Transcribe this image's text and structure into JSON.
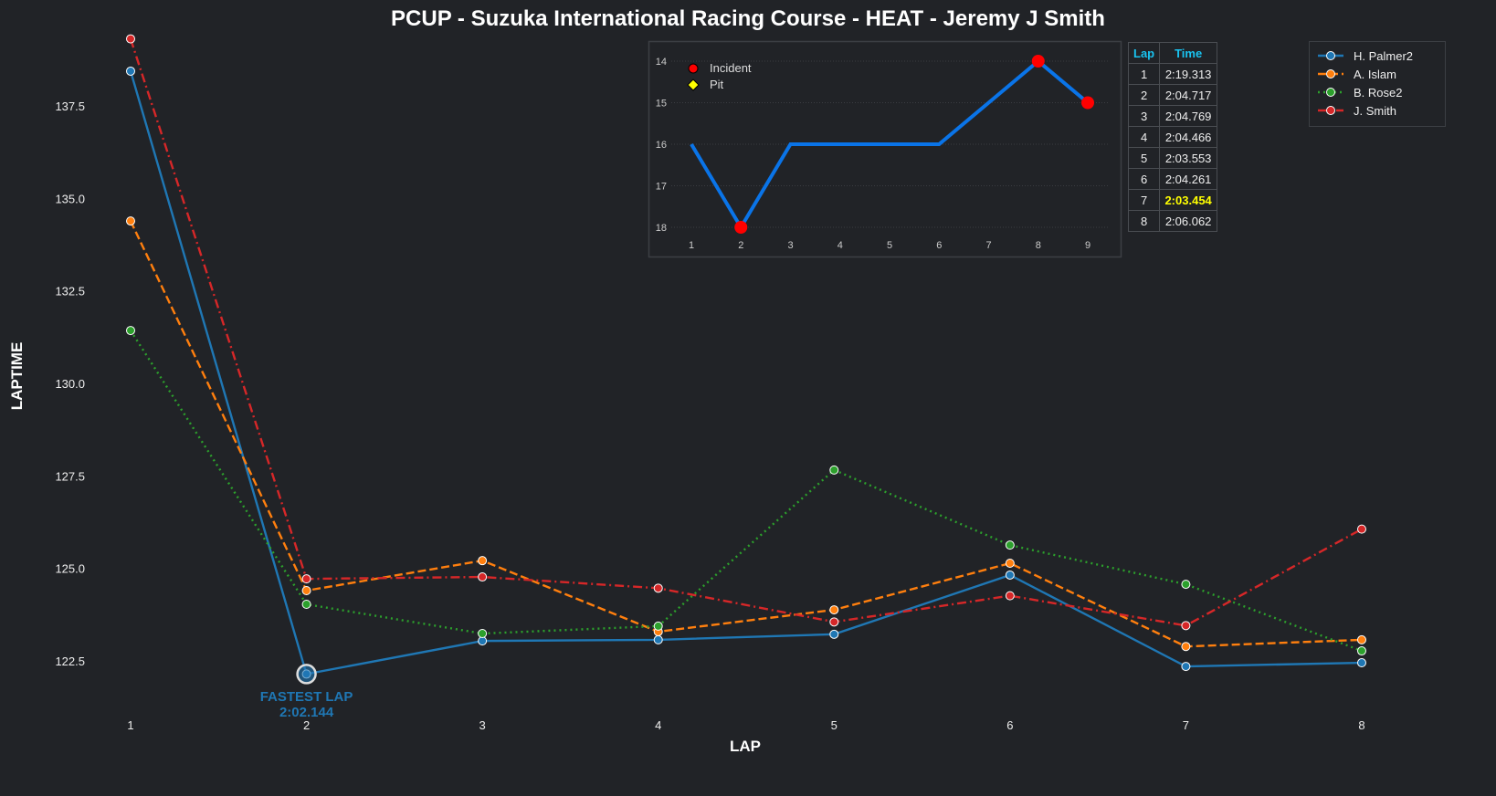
{
  "chart_data": [
    {
      "type": "line",
      "title": "PCUP - Suzuka International Racing Course - HEAT - Jeremy J Smith",
      "xlabel": "LAP",
      "ylabel": "LAPTIME",
      "x": [
        1,
        2,
        3,
        4,
        5,
        6,
        7,
        8
      ],
      "xlim": [
        0.8,
        8.2
      ],
      "ylim": [
        120.9,
        139.5
      ],
      "yticks": [
        122.5,
        125.0,
        127.5,
        130.0,
        132.5,
        135.0,
        137.5
      ],
      "ytick_labels": [
        "122.5",
        "125.0",
        "127.5",
        "130.0",
        "132.5",
        "135.0",
        "137.5"
      ],
      "grid": false,
      "legend_position": "top-right",
      "series": [
        {
          "name": "H. Palmer2",
          "color": "#1f77b4",
          "dash": "solid",
          "values": [
            138.44,
            122.144,
            123.04,
            123.07,
            123.22,
            124.82,
            122.35,
            122.45
          ]
        },
        {
          "name": "A. Islam",
          "color": "#ff7f0e",
          "dash": "dashed",
          "values": [
            134.39,
            124.4,
            125.21,
            123.29,
            123.88,
            125.14,
            122.89,
            123.07
          ]
        },
        {
          "name": "B. Rose2",
          "color": "#2ca02c",
          "dash": "dotted",
          "values": [
            131.43,
            124.03,
            123.24,
            123.44,
            127.66,
            125.63,
            124.57,
            122.77
          ]
        },
        {
          "name": "J. Smith",
          "color": "#d62728",
          "dash": "dashdot",
          "values": [
            139.313,
            124.717,
            124.769,
            124.466,
            123.553,
            124.261,
            123.454,
            126.062
          ]
        }
      ],
      "annotation": {
        "label": "FASTEST LAP",
        "value": "2:02.144",
        "lap": 2,
        "laptime": 122.144,
        "color": "#1f77b4"
      }
    },
    {
      "type": "line",
      "title": "",
      "x": [
        1,
        2,
        3,
        4,
        5,
        6,
        7,
        8,
        9
      ],
      "values": [
        16,
        18,
        16,
        16,
        16,
        16,
        15,
        14,
        15
      ],
      "ylim": [
        18.3,
        13.7
      ],
      "yticks": [
        14,
        15,
        16,
        17,
        18
      ],
      "line_color": "#0a74e8",
      "incidents": [
        2,
        8,
        9
      ],
      "pits": [],
      "legend": [
        {
          "label": "Incident",
          "color": "#ff0000"
        },
        {
          "label": "Pit",
          "color": "#ffff00"
        }
      ]
    }
  ],
  "table": {
    "headers": [
      "Lap",
      "Time"
    ],
    "rows": [
      [
        "1",
        "2:19.313"
      ],
      [
        "2",
        "2:04.717"
      ],
      [
        "3",
        "2:04.769"
      ],
      [
        "4",
        "2:04.466"
      ],
      [
        "5",
        "2:03.553"
      ],
      [
        "6",
        "2:04.261"
      ],
      [
        "7",
        "2:03.454"
      ],
      [
        "8",
        "2:06.062"
      ]
    ],
    "best_row": 6,
    "best_color": "#ffff00"
  }
}
